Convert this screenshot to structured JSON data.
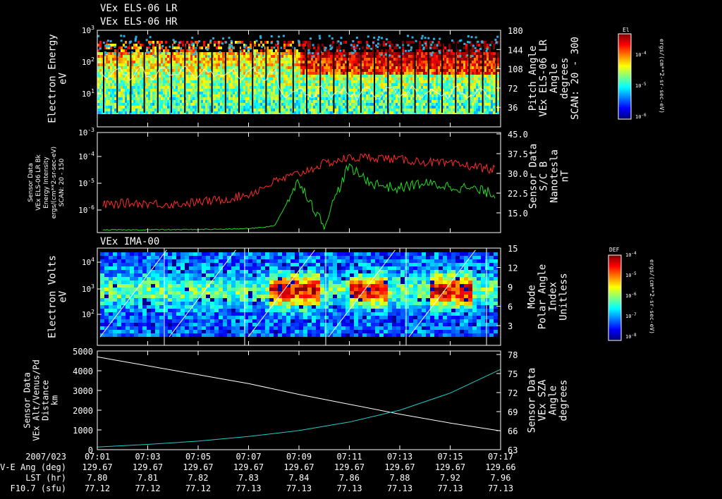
{
  "header": {
    "title_line1": "VEx ELS-06 LR",
    "title_line2": "VEx ELS-06 HR"
  },
  "colors": {
    "background": "#000000",
    "axis": "#ffffff",
    "red_trace": "#ff2a2a",
    "green_trace": "#22dd22",
    "cyan_trace": "#22cccc",
    "white_trace": "#ffffff"
  },
  "chart_data": [
    {
      "type": "heatmap",
      "panel": "els-spectrogram",
      "ylabel": [
        "Electron Energy",
        "eV"
      ],
      "y_scale": "log",
      "yticks_left": [
        {
          "base": "10",
          "exp": "3"
        },
        {
          "base": "10",
          "exp": "2"
        },
        {
          "base": "10",
          "exp": "1"
        }
      ],
      "right_axis": {
        "label": [
          "Pitch Angle",
          "VEx ELS-06 LR",
          "Angle",
          "degrees",
          "SCAN: 20 - 300"
        ],
        "ticks": [
          "180",
          "144",
          "108",
          "72",
          "36"
        ],
        "ylim": [
          0,
          180
        ]
      },
      "colorbar": {
        "title": "El",
        "ticks": [
          {
            "base": "10",
            "exp": "-4"
          },
          {
            "base": "10",
            "exp": "-5"
          },
          {
            "base": "10",
            "exp": "-6"
          }
        ],
        "label": "ergs/(cm**2-sr-sec-eV)"
      }
    },
    {
      "type": "line",
      "panel": "sensor-data-energy-intensity",
      "ylabel_left": [
        "Sensor Data",
        "VEx ELS-06 LR Bk",
        "Energy Intensity",
        "ergs/(cm**2-sr-sec-eV)",
        "SCAN: 20 - 150"
      ],
      "y_scale": "log",
      "yticks_left": [
        {
          "base": "10",
          "exp": "-3"
        },
        {
          "base": "10",
          "exp": "-4"
        },
        {
          "base": "10",
          "exp": "-5"
        },
        {
          "base": "10",
          "exp": "-6"
        }
      ],
      "right_axis": {
        "label": [
          "Sensor Data",
          "S/C B",
          "Nanotesla",
          "nT"
        ],
        "ticks": [
          "45.0",
          "37.5",
          "30.0",
          "22.5",
          "15.0"
        ],
        "ylim": [
          7.5,
          45
        ]
      },
      "series": [
        {
          "color": "red",
          "axis": "left",
          "x": [
            "07:01",
            "07:02",
            "07:03",
            "07:04",
            "07:05",
            "07:06",
            "07:07",
            "07:08",
            "07:09",
            "07:10",
            "07:11",
            "07:12",
            "07:13",
            "07:14",
            "07:15",
            "07:16",
            "07:17"
          ],
          "values": [
            1.5e-06,
            1.8e-06,
            1.7e-06,
            1.6e-06,
            2e-06,
            2.5e-06,
            4e-06,
            1.2e-05,
            2.5e-05,
            6e-05,
            0.0001,
            0.00011,
            9e-05,
            7.5e-05,
            6e-05,
            5e-05,
            3.5e-05
          ]
        },
        {
          "color": "green",
          "axis": "right",
          "x": [
            "07:01",
            "07:02",
            "07:03",
            "07:04",
            "07:05",
            "07:06",
            "07:07",
            "07:08",
            "07:09",
            "07:10",
            "07:11",
            "07:12",
            "07:13",
            "07:14",
            "07:15",
            "07:16",
            "07:17"
          ],
          "values": [
            8.5,
            8.5,
            8.6,
            8.6,
            8.7,
            8.8,
            9.0,
            10.0,
            27.0,
            10.0,
            32.0,
            26.0,
            24.0,
            26.0,
            25.0,
            24.0,
            22.0
          ]
        }
      ]
    },
    {
      "type": "heatmap",
      "panel": "ima-spectrogram",
      "title": "VEx IMA-00",
      "ylabel": [
        "Electron Volts",
        "eV"
      ],
      "y_scale": "log",
      "yticks_left": [
        {
          "base": "10",
          "exp": "4"
        },
        {
          "base": "10",
          "exp": "3"
        },
        {
          "base": "10",
          "exp": "2"
        }
      ],
      "right_axis": {
        "label": [
          "Mode",
          "Polar Angle",
          "Index",
          "Unitless"
        ],
        "ticks": [
          "15",
          "12",
          "9",
          "6",
          "3"
        ],
        "ylim": [
          0,
          15
        ]
      },
      "colorbar": {
        "title": "DEF",
        "ticks": [
          {
            "base": "10",
            "exp": "-4"
          },
          {
            "base": "10",
            "exp": "-5"
          },
          {
            "base": "10",
            "exp": "-6"
          },
          {
            "base": "10",
            "exp": "-7"
          },
          {
            "base": "10",
            "exp": "-8"
          }
        ],
        "label": "ergs/(cm**2-sr-sec-eV)"
      }
    },
    {
      "type": "line",
      "panel": "altitude-sza",
      "ylabel_left": [
        "Sensor Data",
        "VEx Alt/Venus/Pd",
        "Distance",
        "km"
      ],
      "yticks_left": [
        "5000",
        "4000",
        "3000",
        "2000",
        "1000",
        "0"
      ],
      "ylim": [
        0,
        5000
      ],
      "right_axis": {
        "label": [
          "Sensor Data",
          "VEx SZA",
          "Angle",
          "degrees"
        ],
        "ticks": [
          "78",
          "75",
          "72",
          "69",
          "66",
          "63"
        ],
        "ylim": [
          63,
          78
        ]
      },
      "series": [
        {
          "color": "white",
          "axis": "left",
          "x": [
            "07:01",
            "07:03",
            "07:05",
            "07:07",
            "07:09",
            "07:11",
            "07:13",
            "07:15",
            "07:17"
          ],
          "values": [
            4700,
            4250,
            3800,
            3350,
            2800,
            2300,
            1800,
            1350,
            950
          ]
        },
        {
          "color": "cyan",
          "axis": "right",
          "x": [
            "07:01",
            "07:03",
            "07:05",
            "07:07",
            "07:09",
            "07:11",
            "07:13",
            "07:15",
            "07:17"
          ],
          "values": [
            63.4,
            63.8,
            64.3,
            65.0,
            65.9,
            67.2,
            69.0,
            71.6,
            75.2
          ]
        }
      ]
    }
  ],
  "x_axis": {
    "date": "2007/023",
    "ticks": [
      "07:01",
      "07:03",
      "07:05",
      "07:07",
      "07:09",
      "07:11",
      "07:13",
      "07:15",
      "07:17"
    ],
    "rows": [
      {
        "label": "V-E Ang (deg)",
        "values": [
          "129.67",
          "129.67",
          "129.67",
          "129.67",
          "129.67",
          "129.67",
          "129.67",
          "129.67",
          "129.66"
        ]
      },
      {
        "label": "LST (hr)",
        "values": [
          "7.80",
          "7.81",
          "7.82",
          "7.83",
          "7.84",
          "7.86",
          "7.88",
          "7.92",
          "7.96"
        ]
      },
      {
        "label": "F10.7 (sfu)",
        "values": [
          "77.12",
          "77.12",
          "77.12",
          "77.13",
          "77.13",
          "77.13",
          "77.13",
          "77.13",
          "77.13"
        ]
      }
    ]
  }
}
